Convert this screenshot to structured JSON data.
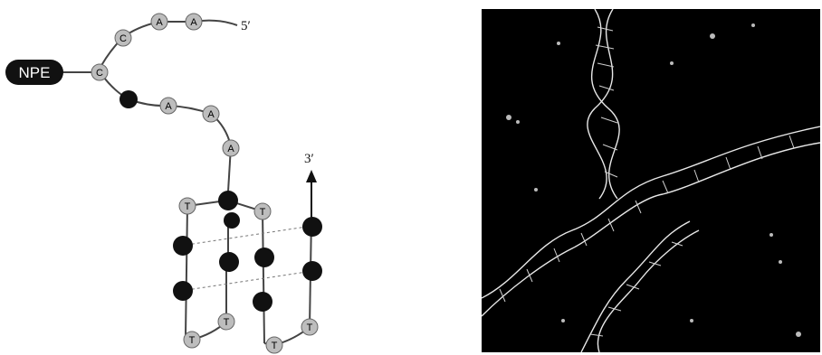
{
  "diagram": {
    "tag_label": "NPE",
    "five_prime": "5′",
    "three_prime": "3′",
    "strand_bases": [
      "A",
      "A",
      "C",
      "C",
      "",
      "A",
      "A",
      "A"
    ],
    "quadruplex_bases": [
      "T",
      "T",
      "T",
      "T",
      "T",
      "T"
    ],
    "colors": {
      "light_base": "#bdbdbd",
      "dark_base": "#111111",
      "tag_fill": "#111111",
      "tag_text": "#ffffff",
      "line": "#444444"
    }
  },
  "micrograph": {
    "background": "#000000",
    "foreground": "#e8e8e8"
  }
}
